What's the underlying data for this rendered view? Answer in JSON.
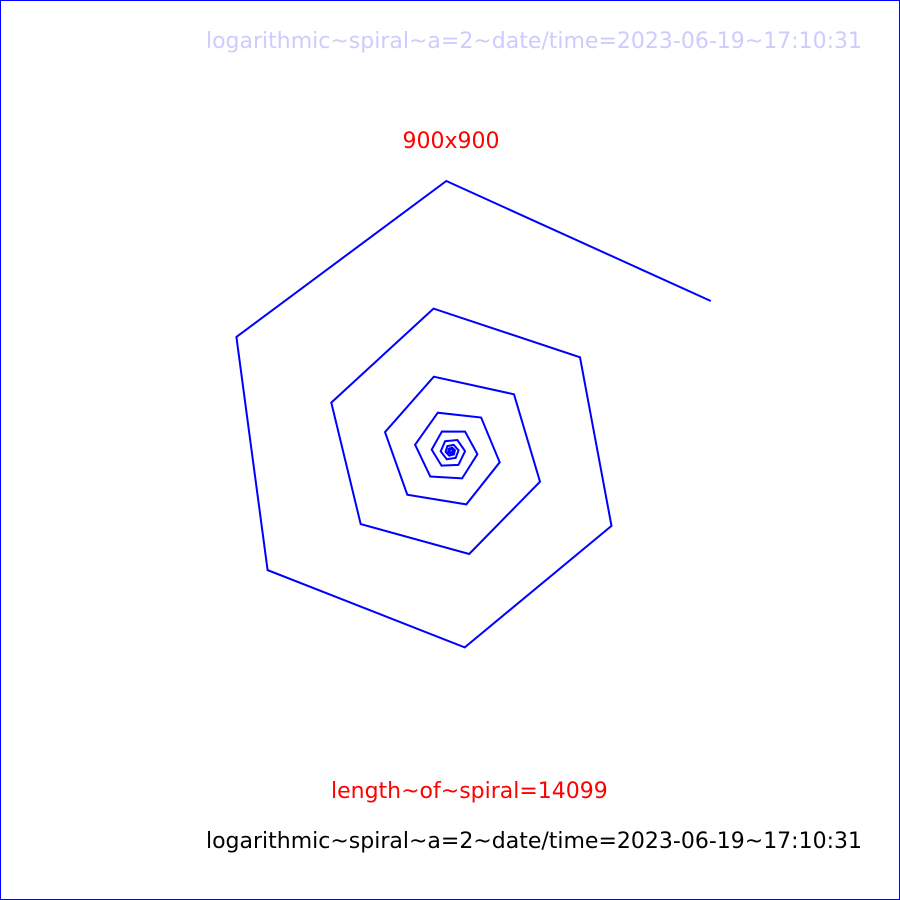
{
  "captions": {
    "top": "logarithmic~spiral~a=2~date/time=2023-06-19~17:10:31",
    "size": "900x900",
    "length": "length~of~spiral=14099",
    "bottom": "logarithmic~spiral~a=2~date/time=2023-06-19~17:10:31"
  },
  "colors": {
    "border": "#0000ff",
    "spiral": "#0000ff",
    "top_caption": "#ccccff",
    "highlight_text": "#ff0000",
    "bottom_caption": "#000000"
  }
}
